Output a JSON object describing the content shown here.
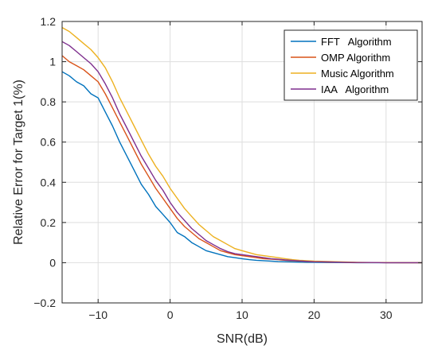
{
  "chart_data": {
    "type": "line",
    "title": "",
    "xlabel": "SNR(dB)",
    "ylabel": "Relative Error for Target 1(%)",
    "xlim": [
      -15,
      35
    ],
    "ylim": [
      -0.2,
      1.2
    ],
    "xticks": [
      -10,
      0,
      10,
      20,
      30
    ],
    "yticks": [
      -0.2,
      0,
      0.2,
      0.4,
      0.6,
      0.8,
      1,
      1.2
    ],
    "xtick_labels": [
      "−10",
      "0",
      "10",
      "20",
      "30"
    ],
    "ytick_labels": [
      "−0.2",
      "0",
      "0.2",
      "0.4",
      "0.6",
      "0.8",
      "1",
      "1.2"
    ],
    "grid": true,
    "legend_position": "top-right",
    "x": [
      -15,
      -14,
      -13,
      -12,
      -11,
      -10,
      -9,
      -8,
      -7,
      -6,
      -5,
      -4,
      -3,
      -2,
      -1,
      0,
      1,
      2,
      3,
      4,
      5,
      6,
      7,
      8,
      9,
      10,
      11,
      12,
      13,
      14,
      15,
      16,
      17,
      18,
      19,
      20,
      22,
      24,
      26,
      28,
      30,
      32,
      35
    ],
    "series": [
      {
        "name": "FFT   Algorithm",
        "color": "#0072BD",
        "values": [
          0.95,
          0.93,
          0.9,
          0.88,
          0.84,
          0.82,
          0.75,
          0.68,
          0.6,
          0.53,
          0.46,
          0.39,
          0.34,
          0.28,
          0.24,
          0.2,
          0.15,
          0.13,
          0.1,
          0.08,
          0.06,
          0.05,
          0.04,
          0.03,
          0.025,
          0.02,
          0.015,
          0.012,
          0.01,
          0.008,
          0.006,
          0.005,
          0.004,
          0.003,
          0.002,
          0.002,
          0.001,
          0.001,
          0.0,
          0.0,
          0.0,
          0.0,
          0.0
        ]
      },
      {
        "name": "OMP Algorithm",
        "color": "#D95319",
        "values": [
          1.03,
          1.0,
          0.98,
          0.96,
          0.93,
          0.9,
          0.84,
          0.77,
          0.7,
          0.63,
          0.56,
          0.49,
          0.43,
          0.37,
          0.32,
          0.27,
          0.22,
          0.18,
          0.15,
          0.12,
          0.1,
          0.08,
          0.06,
          0.05,
          0.04,
          0.035,
          0.03,
          0.025,
          0.02,
          0.018,
          0.015,
          0.012,
          0.01,
          0.008,
          0.006,
          0.005,
          0.003,
          0.002,
          0.001,
          0.001,
          0.0,
          0.0,
          0.0
        ]
      },
      {
        "name": "Music Algorithm",
        "color": "#EDB120",
        "values": [
          1.17,
          1.15,
          1.12,
          1.09,
          1.06,
          1.02,
          0.97,
          0.9,
          0.82,
          0.75,
          0.68,
          0.61,
          0.54,
          0.48,
          0.43,
          0.37,
          0.32,
          0.27,
          0.23,
          0.19,
          0.16,
          0.13,
          0.11,
          0.09,
          0.07,
          0.06,
          0.05,
          0.04,
          0.035,
          0.03,
          0.025,
          0.02,
          0.015,
          0.012,
          0.01,
          0.008,
          0.006,
          0.004,
          0.002,
          0.001,
          0.001,
          0.0,
          0.0
        ]
      },
      {
        "name": "IAA   Algorithm",
        "color": "#7E2F8E",
        "values": [
          1.1,
          1.08,
          1.05,
          1.02,
          0.99,
          0.95,
          0.89,
          0.82,
          0.74,
          0.67,
          0.6,
          0.53,
          0.47,
          0.41,
          0.36,
          0.3,
          0.25,
          0.21,
          0.17,
          0.14,
          0.11,
          0.09,
          0.07,
          0.055,
          0.045,
          0.04,
          0.035,
          0.03,
          0.025,
          0.02,
          0.017,
          0.014,
          0.011,
          0.009,
          0.007,
          0.005,
          0.004,
          0.002,
          0.001,
          0.001,
          0.0,
          0.0,
          0.0
        ]
      }
    ]
  }
}
